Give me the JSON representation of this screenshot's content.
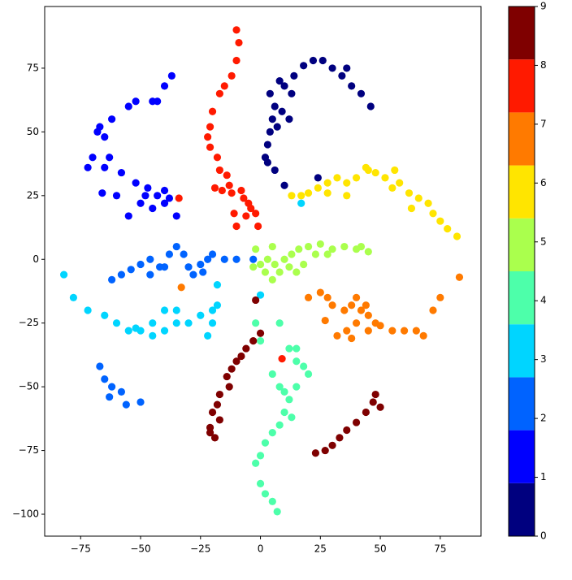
{
  "chart_data": {
    "type": "scatter",
    "xlim": [
      -90,
      92
    ],
    "ylim": [
      -108.6,
      99.2
    ],
    "xticks": [
      {
        "value": -75,
        "label": "−75"
      },
      {
        "value": -50,
        "label": "−50"
      },
      {
        "value": -25,
        "label": "−25"
      },
      0,
      25,
      50,
      75
    ],
    "yticks": [
      {
        "value": -100,
        "label": "−100"
      },
      {
        "value": -75,
        "label": "−75"
      },
      {
        "value": -50,
        "label": "−50"
      },
      {
        "value": -25,
        "label": "−25"
      },
      0,
      25,
      50,
      75
    ],
    "colorbar": {
      "lim": [
        0,
        9
      ],
      "ticks": [
        0,
        1,
        2,
        3,
        4,
        5,
        6,
        7,
        8,
        9
      ]
    },
    "series": [
      {
        "color": "#00007f",
        "x": [
          2,
          3,
          4,
          5,
          6,
          4,
          8,
          10,
          14,
          18,
          22,
          26,
          30,
          34,
          38,
          42,
          46,
          9,
          7,
          12,
          3,
          6,
          24,
          10,
          13,
          36
        ],
        "y": [
          40,
          45,
          50,
          55,
          60,
          65,
          70,
          68,
          72,
          76,
          78,
          78,
          75,
          72,
          68,
          65,
          60,
          58,
          52,
          55,
          38,
          35,
          32,
          29,
          65,
          75
        ]
      },
      {
        "color": "#0000ff",
        "x": [
          -37,
          -45,
          -55,
          -62,
          -68,
          -70,
          -72,
          -65,
          -58,
          -52,
          -47,
          -43,
          -40,
          -45,
          -50,
          -55,
          -35,
          -40,
          -66,
          -60,
          -48,
          -38,
          -40,
          -43,
          -52,
          -65,
          -67,
          -63
        ],
        "y": [
          72,
          62,
          60,
          55,
          50,
          40,
          36,
          36,
          34,
          30,
          28,
          25,
          22,
          20,
          22,
          17,
          17,
          27,
          26,
          25,
          25,
          24,
          68,
          62,
          62,
          48,
          52,
          40
        ]
      },
      {
        "color": "#0063ff",
        "x": [
          -62,
          -58,
          -54,
          -50,
          -46,
          -42,
          -38,
          -35,
          -32,
          -30,
          -25,
          -22,
          -20,
          -15,
          -10,
          -3,
          -28,
          -24,
          -67,
          -65,
          -62,
          -58,
          -56,
          -50,
          -63,
          -40,
          -46
        ],
        "y": [
          -8,
          -6,
          -4,
          -2,
          0,
          -3,
          2,
          5,
          2,
          -3,
          -2,
          0,
          2,
          0,
          0,
          0,
          -6,
          -5,
          -42,
          -47,
          -50,
          -52,
          -57,
          -56,
          -54,
          -3,
          -6
        ]
      },
      {
        "color": "#00d5ff",
        "x": [
          -82,
          -78,
          -72,
          -65,
          -60,
          -55,
          -50,
          -45,
          -40,
          -35,
          -30,
          -25,
          -20,
          -18,
          -20,
          -22,
          -18,
          -40,
          -35,
          -45,
          -52,
          0,
          17
        ],
        "y": [
          -6,
          -15,
          -20,
          -22,
          -25,
          -28,
          -28,
          -30,
          -28,
          -25,
          -25,
          -22,
          -20,
          -18,
          -25,
          -30,
          -10,
          -20,
          -20,
          -25,
          -27,
          -14,
          22
        ]
      },
      {
        "color": "#4dffaa",
        "x": [
          8,
          12,
          15,
          18,
          20,
          15,
          12,
          10,
          8,
          5,
          2,
          0,
          -2,
          0,
          2,
          5,
          7,
          5,
          8,
          10,
          13,
          0,
          15,
          -2
        ],
        "y": [
          -25,
          -35,
          -40,
          -42,
          -45,
          -50,
          -55,
          -60,
          -65,
          -68,
          -72,
          -77,
          -80,
          -88,
          -92,
          -95,
          -99,
          -45,
          -50,
          -52,
          -62,
          -32,
          -35,
          -25
        ]
      },
      {
        "color": "#aaff4d",
        "x": [
          -3,
          0,
          3,
          6,
          10,
          13,
          16,
          20,
          25,
          30,
          35,
          40,
          45,
          -2,
          5,
          8,
          5,
          12,
          18,
          23,
          28,
          2,
          15,
          42
        ],
        "y": [
          -3,
          -2,
          0,
          -2,
          0,
          2,
          4,
          5,
          6,
          4,
          5,
          4,
          3,
          4,
          5,
          -5,
          -8,
          -3,
          -2,
          2,
          2,
          -5,
          -5,
          5
        ]
      },
      {
        "color": "#ffe500",
        "x": [
          13,
          17,
          20,
          24,
          28,
          32,
          36,
          40,
          44,
          48,
          52,
          56,
          58,
          62,
          66,
          70,
          72,
          75,
          78,
          82,
          36,
          28,
          55,
          63,
          45
        ],
        "y": [
          25,
          25,
          26,
          28,
          30,
          32,
          30,
          32,
          36,
          34,
          32,
          35,
          30,
          26,
          24,
          22,
          18,
          15,
          12,
          9,
          25,
          26,
          28,
          20,
          35
        ]
      },
      {
        "color": "#ff7a00",
        "x": [
          20,
          25,
          28,
          30,
          35,
          38,
          40,
          42,
          45,
          48,
          40,
          36,
          32,
          45,
          50,
          55,
          60,
          65,
          68,
          72,
          75,
          83,
          -33,
          27,
          44,
          38
        ],
        "y": [
          -15,
          -13,
          -15,
          -18,
          -20,
          -18,
          -15,
          -20,
          -22,
          -25,
          -25,
          -28,
          -30,
          -28,
          -26,
          -28,
          -28,
          -28,
          -30,
          -20,
          -15,
          -7,
          -11,
          -24,
          -18,
          -31
        ]
      },
      {
        "color": "#ff1a00",
        "x": [
          -10,
          -9,
          -10,
          -12,
          -15,
          -17,
          -20,
          -21,
          -22,
          -21,
          -18,
          -17,
          -14,
          -13,
          -12,
          -8,
          -7,
          -5,
          -4,
          -2,
          -11,
          -1,
          -10,
          -6,
          -34,
          9,
          -16,
          -19
        ],
        "y": [
          90,
          85,
          78,
          72,
          68,
          65,
          58,
          52,
          48,
          44,
          40,
          35,
          33,
          29,
          26,
          27,
          24,
          22,
          20,
          18,
          18,
          13,
          13,
          17,
          24,
          -39,
          27,
          28
        ]
      },
      {
        "color": "#7f0000",
        "x": [
          -2,
          0,
          -3,
          -6,
          -8,
          -10,
          -12,
          -14,
          -17,
          -18,
          -20,
          -21,
          -19,
          -21,
          23,
          27,
          30,
          33,
          36,
          40,
          44,
          47,
          48,
          50,
          -17,
          -13
        ],
        "y": [
          -16,
          -29,
          -32,
          -35,
          -38,
          -40,
          -43,
          -46,
          -53,
          -57,
          -60,
          -66,
          -70,
          -68,
          -76,
          -75,
          -73,
          -70,
          -67,
          -64,
          -60,
          -56,
          -53,
          -58,
          -63,
          -50
        ]
      }
    ]
  }
}
